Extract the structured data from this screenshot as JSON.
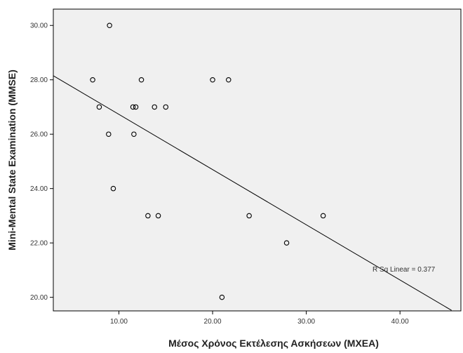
{
  "chart_data": {
    "type": "scatter",
    "title": "",
    "xlabel": "Μέσος Χρόνος Εκτέλεσης Ασκήσεων (ΜΧΕΑ)",
    "ylabel": "Mini-Mental State Examination (MMSE)",
    "xlim": [
      3.0,
      46.5
    ],
    "ylim": [
      19.5,
      30.6
    ],
    "xticks": [
      10,
      20,
      30,
      40
    ],
    "xtick_labels": [
      "10.00",
      "20.00",
      "30.00",
      "40.00"
    ],
    "yticks": [
      20,
      22,
      24,
      26,
      28,
      30
    ],
    "ytick_labels": [
      "20.00",
      "22.00",
      "24.00",
      "26.00",
      "28.00",
      "30.00"
    ],
    "grid": false,
    "background": "#f0f0f0",
    "points": [
      {
        "x": 9.0,
        "y": 30
      },
      {
        "x": 7.2,
        "y": 28
      },
      {
        "x": 12.4,
        "y": 28
      },
      {
        "x": 20.0,
        "y": 28
      },
      {
        "x": 21.7,
        "y": 28
      },
      {
        "x": 7.9,
        "y": 27
      },
      {
        "x": 11.5,
        "y": 27
      },
      {
        "x": 11.8,
        "y": 27
      },
      {
        "x": 13.8,
        "y": 27
      },
      {
        "x": 15.0,
        "y": 27
      },
      {
        "x": 8.9,
        "y": 26
      },
      {
        "x": 11.6,
        "y": 26
      },
      {
        "x": 9.4,
        "y": 24
      },
      {
        "x": 13.1,
        "y": 23
      },
      {
        "x": 14.2,
        "y": 23
      },
      {
        "x": 23.9,
        "y": 23
      },
      {
        "x": 31.8,
        "y": 23
      },
      {
        "x": 27.9,
        "y": 22
      },
      {
        "x": 21.0,
        "y": 20
      }
    ],
    "fit_line": {
      "type": "linear",
      "label": "R Sq Linear = 0.377",
      "x0": 3.0,
      "y0": 28.15,
      "x1": 45.5,
      "y1": 19.52
    }
  }
}
